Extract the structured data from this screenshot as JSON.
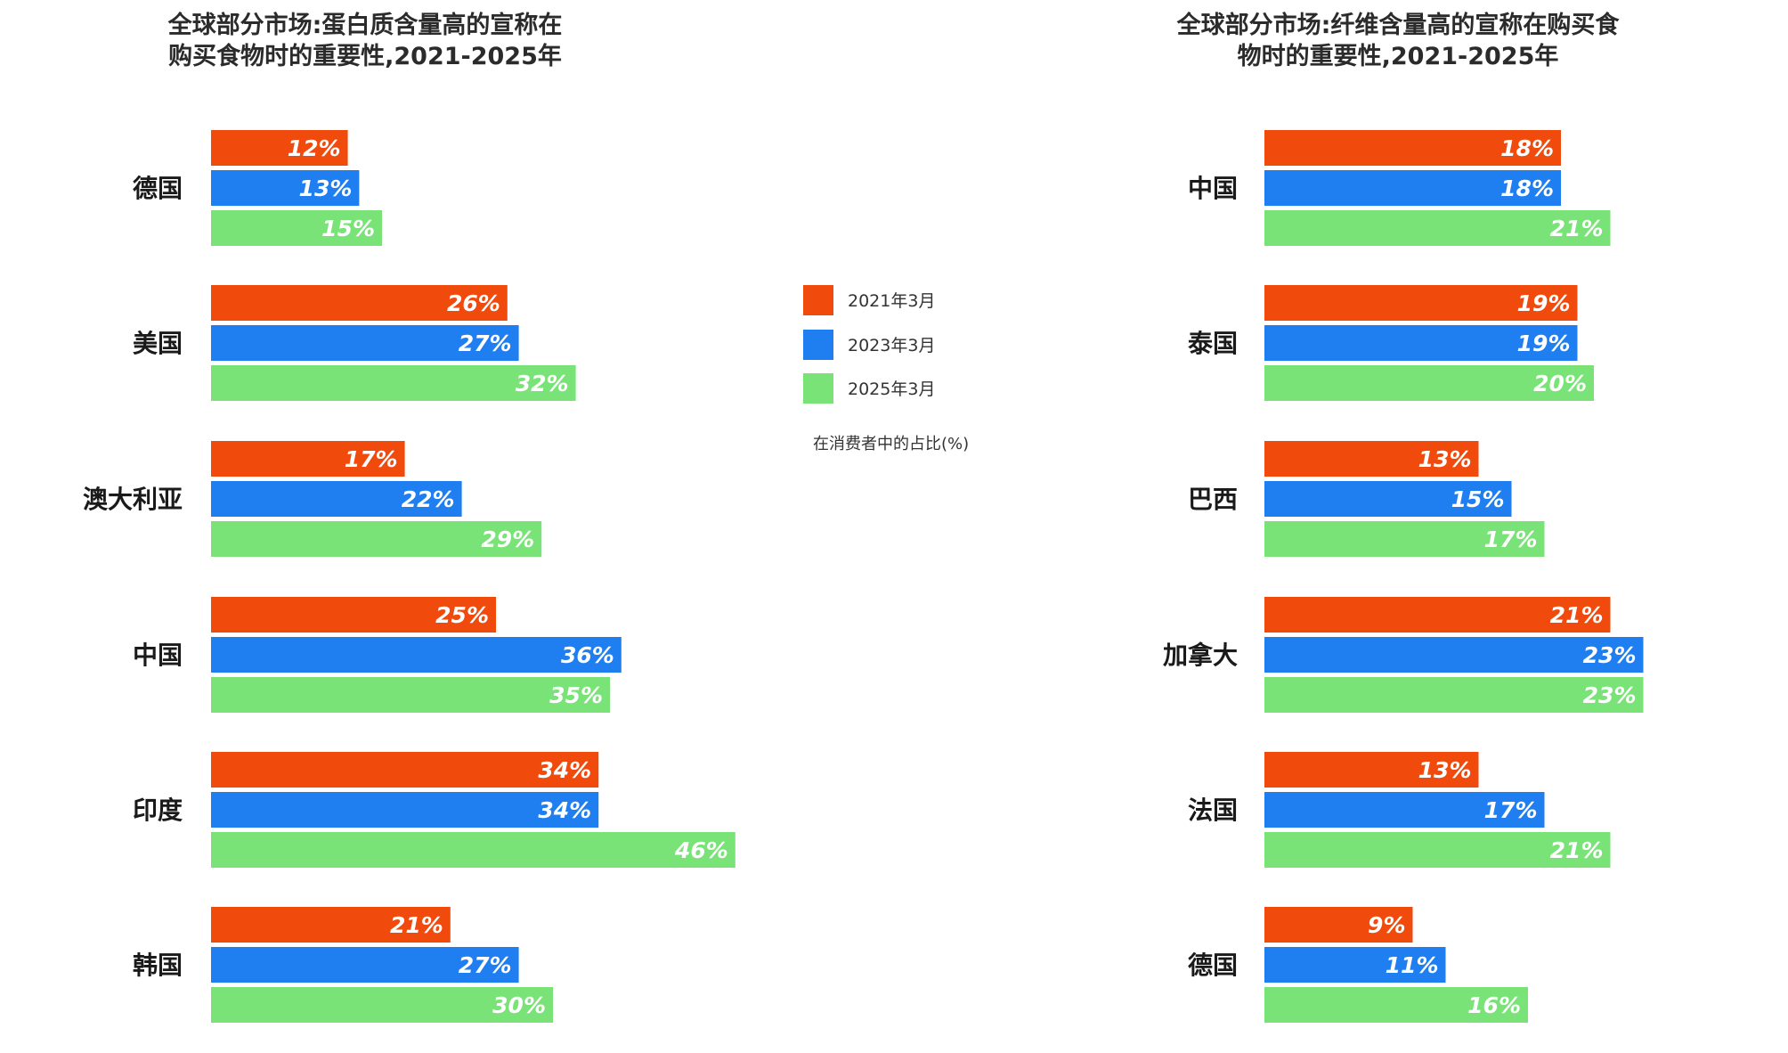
{
  "colors": {
    "2021": "#f04a0c",
    "2023": "#1f7ef0",
    "2025": "#79e378"
  },
  "legend": {
    "items": [
      {
        "label": "2021年3月",
        "color": "#f04a0c"
      },
      {
        "label": "2023年3月",
        "color": "#1f7ef0"
      },
      {
        "label": "2025年3月",
        "color": "#79e378"
      }
    ],
    "unit_note": "在消费者中的占比(%)"
  },
  "chart_data": [
    {
      "type": "bar",
      "orientation": "horizontal",
      "title_lines": [
        "全球部分市场:蛋白质含量高的宣称在",
        "购买食物时的重要性,2021-2025年"
      ],
      "categories": [
        "德国",
        "美国",
        "澳大利亚",
        "中国",
        "印度",
        "韩国"
      ],
      "series": [
        {
          "name": "2021年3月",
          "values": [
            12,
            26,
            17,
            25,
            34,
            21
          ]
        },
        {
          "name": "2023年3月",
          "values": [
            13,
            27,
            22,
            36,
            34,
            27
          ]
        },
        {
          "name": "2025年3月",
          "values": [
            15,
            32,
            29,
            35,
            46,
            30
          ]
        }
      ],
      "value_suffix": "%",
      "legend_position": "right"
    },
    {
      "type": "bar",
      "orientation": "horizontal",
      "title_lines": [
        "全球部分市场:纤维含量高的宣称在购买食",
        "物时的重要性,2021-2025年"
      ],
      "categories": [
        "中国",
        "泰国",
        "巴西",
        "加拿大",
        "法国",
        "德国"
      ],
      "series": [
        {
          "name": "2021年3月",
          "values": [
            18,
            19,
            13,
            21,
            13,
            9
          ]
        },
        {
          "name": "2023年3月",
          "values": [
            18,
            19,
            15,
            23,
            17,
            11
          ]
        },
        {
          "name": "2025年3月",
          "values": [
            21,
            20,
            17,
            23,
            21,
            16
          ]
        }
      ],
      "value_suffix": "%",
      "legend_position": "left"
    }
  ]
}
